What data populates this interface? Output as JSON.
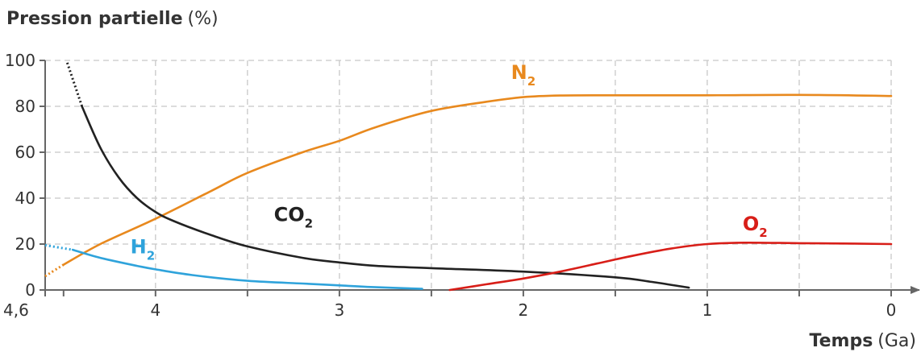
{
  "chart_data": {
    "type": "line",
    "ylabel": {
      "bold": "Pression partielle",
      "unit": "(%)"
    },
    "xlabel": {
      "bold": "Temps",
      "unit": "(Ga)"
    },
    "xlim": [
      4.6,
      0
    ],
    "ylim": [
      0,
      100
    ],
    "x_ticks": [
      {
        "value": 4.6,
        "label": "4,6"
      },
      {
        "value": 4,
        "label": "4"
      },
      {
        "value": 3,
        "label": "3"
      },
      {
        "value": 2,
        "label": "2"
      },
      {
        "value": 1,
        "label": "1"
      },
      {
        "value": 0,
        "label": "0"
      }
    ],
    "y_ticks": [
      0,
      20,
      40,
      60,
      80,
      100
    ],
    "grid": true,
    "series": [
      {
        "name": "N₂",
        "label_main": "N",
        "label_sub": "2",
        "color": "#E8891E",
        "label_at": [
          2.0,
          92
        ],
        "dotted": [
          [
            4.6,
            6
          ],
          [
            4.5,
            11
          ]
        ],
        "points": [
          [
            4.5,
            11
          ],
          [
            4.3,
            20
          ],
          [
            4.0,
            31
          ],
          [
            3.7,
            43
          ],
          [
            3.5,
            51
          ],
          [
            3.2,
            60
          ],
          [
            3.0,
            65
          ],
          [
            2.8,
            71
          ],
          [
            2.5,
            78
          ],
          [
            2.2,
            82
          ],
          [
            2.0,
            84
          ],
          [
            1.8,
            84.7
          ],
          [
            1.5,
            84.8
          ],
          [
            1.0,
            84.8
          ],
          [
            0.5,
            85
          ],
          [
            0,
            84.5
          ]
        ]
      },
      {
        "name": "CO₂",
        "label_main": "CO",
        "label_sub": "2",
        "color": "#222222",
        "label_at": [
          3.25,
          30
        ],
        "dotted": [
          [
            4.48,
            99
          ],
          [
            4.4,
            80
          ]
        ],
        "points": [
          [
            4.4,
            80
          ],
          [
            4.3,
            62
          ],
          [
            4.2,
            49
          ],
          [
            4.1,
            40
          ],
          [
            4.0,
            34
          ],
          [
            3.9,
            30
          ],
          [
            3.7,
            24
          ],
          [
            3.5,
            19
          ],
          [
            3.2,
            14
          ],
          [
            3.0,
            12
          ],
          [
            2.8,
            10.5
          ],
          [
            2.5,
            9.5
          ],
          [
            2.0,
            8
          ],
          [
            1.5,
            5.5
          ],
          [
            1.3,
            3.5
          ],
          [
            1.1,
            1
          ]
        ]
      },
      {
        "name": "H₂",
        "label_main": "H",
        "label_sub": "2",
        "color": "#2FA3DB",
        "label_at": [
          4.07,
          16
        ],
        "dotted": [
          [
            4.6,
            19.5
          ],
          [
            4.45,
            17.5
          ]
        ],
        "points": [
          [
            4.45,
            17.5
          ],
          [
            4.3,
            14
          ],
          [
            4.1,
            10.5
          ],
          [
            4.0,
            9
          ],
          [
            3.8,
            6.5
          ],
          [
            3.5,
            4
          ],
          [
            3.2,
            2.8
          ],
          [
            3.0,
            2
          ],
          [
            2.8,
            1.2
          ],
          [
            2.55,
            0.5
          ]
        ]
      },
      {
        "name": "O₂",
        "label_main": "O",
        "label_sub": "2",
        "color": "#D81E18",
        "label_at": [
          0.74,
          26
        ],
        "dotted": [],
        "points": [
          [
            2.4,
            0
          ],
          [
            2.2,
            2.5
          ],
          [
            2.0,
            5
          ],
          [
            1.8,
            8
          ],
          [
            1.6,
            11.5
          ],
          [
            1.4,
            15
          ],
          [
            1.2,
            18
          ],
          [
            1.0,
            20
          ],
          [
            0.8,
            20.6
          ],
          [
            0.5,
            20.4
          ],
          [
            0.2,
            20.2
          ],
          [
            0,
            20
          ]
        ]
      }
    ]
  }
}
